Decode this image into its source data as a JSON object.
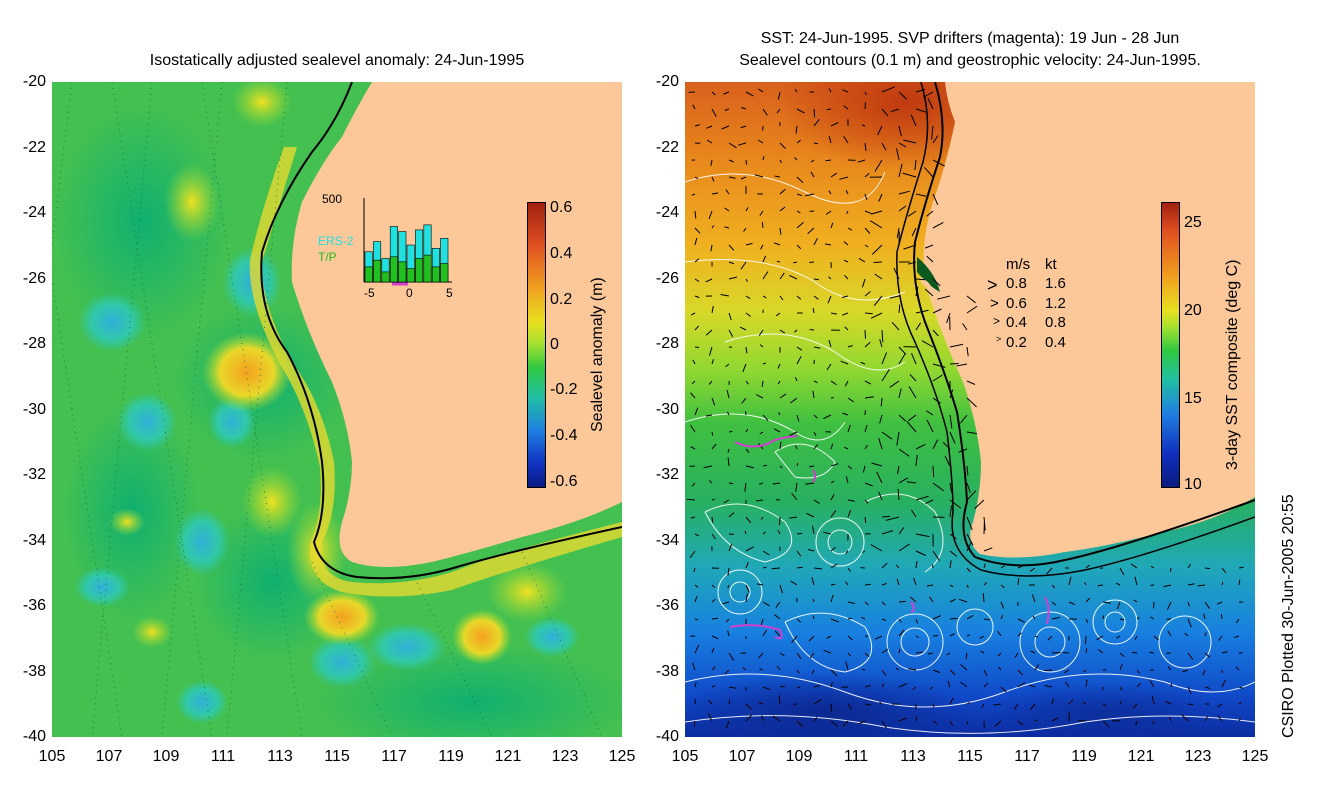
{
  "left_map": {
    "title": "Isostatically adjusted sealevel anomaly: 24-Jun-1995",
    "colorbar_label": "Sealevel anomaly (m)",
    "colorbar_ticks": [
      "0.6",
      "0.4",
      "0.2",
      "0",
      "-0.2",
      "-0.4",
      "-0.6"
    ],
    "inset": {
      "y_max_label": "500",
      "series_labels": [
        "ERS-2",
        "T/P"
      ],
      "series_colors": [
        "#20e0e0",
        "#20c020"
      ],
      "x_ticks": [
        "-5",
        "0",
        "5"
      ],
      "ers2_counts": [
        180,
        240,
        140,
        330,
        300,
        220,
        310,
        340,
        200,
        260
      ],
      "tp_counts": [
        90,
        130,
        60,
        150,
        120,
        80,
        140,
        160,
        90,
        110
      ]
    }
  },
  "right_map": {
    "title_line1": "SST: 24-Jun-1995. SVP drifters (magenta): 19 Jun - 28 Jun",
    "title_line2": "Sealevel contours (0.1 m) and geostrophic velocity: 24-Jun-1995.",
    "colorbar_label": "3-day SST composite (deg C)",
    "colorbar_ticks": [
      "25",
      "20",
      "15",
      "10"
    ],
    "velocity_legend": {
      "header_ms": "m/s",
      "header_kt": "kt",
      "rows": [
        {
          "ms": "0.8",
          "kt": "1.6"
        },
        {
          "ms": "0.6",
          "kt": "1.2"
        },
        {
          "ms": "0.4",
          "kt": "0.8"
        },
        {
          "ms": "0.2",
          "kt": "0.4"
        }
      ]
    }
  },
  "y_axis_labels": [
    "-20",
    "-22",
    "-24",
    "-26",
    "-28",
    "-30",
    "-32",
    "-34",
    "-36",
    "-38",
    "-40"
  ],
  "x_axis_labels": [
    "105",
    "107",
    "109",
    "111",
    "113",
    "115",
    "117",
    "119",
    "121",
    "123",
    "125"
  ],
  "credit": "CSIRO Plotted 30-Jun-2005 20:55",
  "colors": {
    "land": "#fcc89a",
    "drifters": "#d040d0"
  }
}
